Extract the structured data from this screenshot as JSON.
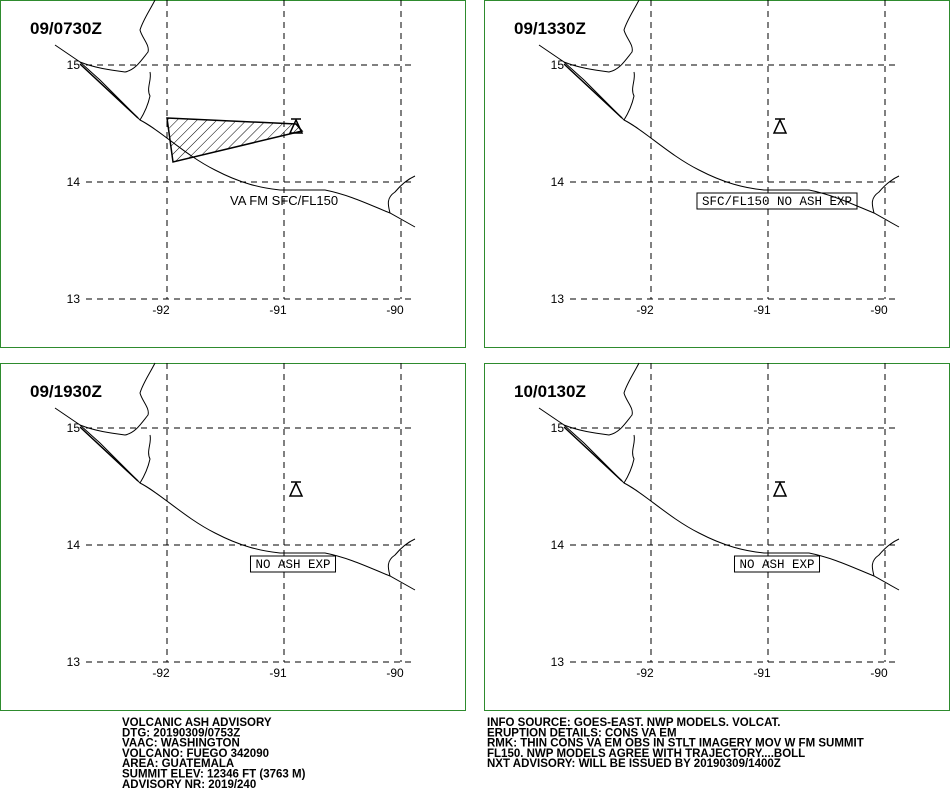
{
  "panels": [
    {
      "time": "09/0730Z",
      "annotation": "VA FM SFC/FL150"
    },
    {
      "time": "09/1330Z",
      "annotation": "SFC/FL150 NO ASH EXP"
    },
    {
      "time": "09/1930Z",
      "annotation": "NO ASH EXP"
    },
    {
      "time": "10/0130Z",
      "annotation": "NO ASH EXP"
    }
  ],
  "lat_ticks": [
    15,
    14,
    13
  ],
  "lon_ticks": [
    -92,
    -91,
    -90
  ],
  "advisory_left": [
    "VOLCANIC ASH ADVISORY",
    "DTG: 20190309/0753Z",
    "VAAC: WASHINGTON",
    "VOLCANO: FUEGO 342090",
    "AREA: GUATEMALA",
    "SUMMIT ELEV: 12346 FT (3763 M)",
    "ADVISORY NR: 2019/240"
  ],
  "advisory_right": [
    "INFO SOURCE: GOES-EAST. NWP MODELS. VOLCAT.",
    "ERUPTION DETAILS: CONS VA EM",
    "RMK: THIN CONS VA EM OBS IN STLT IMAGERY MOV W FM SUMMIT",
    "FL150. NWP MODELS AGREE WITH TRAJECTORY....BOLL",
    "NXT ADVISORY: WILL BE ISSUED BY 20190309/1400Z"
  ]
}
